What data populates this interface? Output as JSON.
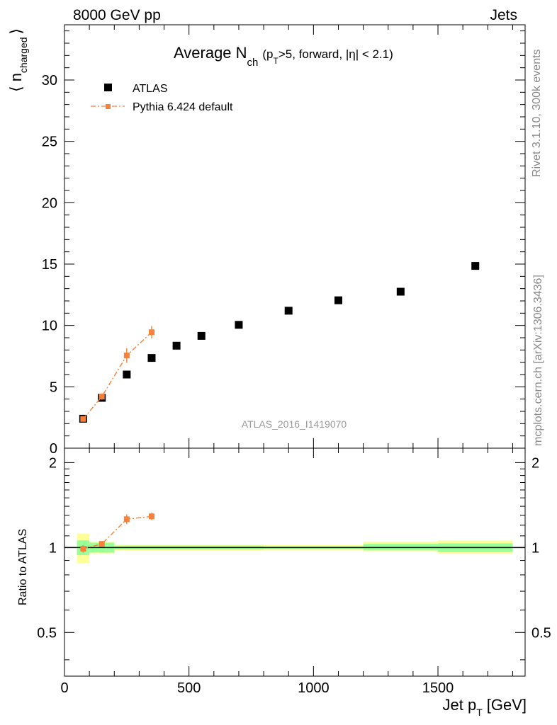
{
  "header": {
    "left": "8000 GeV pp",
    "right": "Jets",
    "side_top": "Rivet 3.1.10,  300k events",
    "side_bottom": "mcplots.cern.ch [arXiv:1306.3436]",
    "watermark": "ATLAS_2016_I1419070"
  },
  "title": {
    "main": "Average N",
    "sub": "ch",
    "rest": "(p",
    "rest_sub": "T",
    "rest2": ">5, forward, |η| < 2.1)"
  },
  "legend": {
    "data_label": "ATLAS",
    "mc_label": "Pythia 6.424 default"
  },
  "axes": {
    "ylabel_main": "⟨ n",
    "ylabel_main_sub": "charged",
    "ylabel_main_close": "⟩",
    "ylabel_ratio": "Ratio to ATLAS",
    "xlabel": "Jet p",
    "xlabel_sub": "T",
    "xlabel_unit": "[GeV]"
  },
  "colors": {
    "data": "#000000",
    "mc": "#f5813a",
    "band_inner": "#99ff99",
    "band_outer": "#ffff99"
  },
  "chart_data": [
    {
      "type": "scatter",
      "panel": "main",
      "xlim": [
        0,
        1850
      ],
      "ylim": [
        0,
        34.5
      ],
      "x_ticks": [
        0,
        500,
        1000,
        1500
      ],
      "y_ticks": [
        0,
        5,
        10,
        15,
        20,
        25,
        30
      ],
      "series": [
        {
          "name": "ATLAS",
          "marker": "square",
          "x": [
            75,
            150,
            250,
            350,
            450,
            550,
            700,
            900,
            1100,
            1350,
            1650
          ],
          "y": [
            2.4,
            4.1,
            6.0,
            7.35,
            8.35,
            9.15,
            10.05,
            11.2,
            12.05,
            12.75,
            14.85
          ],
          "x_err": [
            25,
            50,
            50,
            50,
            50,
            50,
            100,
            100,
            100,
            150,
            150
          ]
        },
        {
          "name": "Pythia 6.424 default",
          "marker": "square",
          "line": "dash-dot",
          "x": [
            75,
            150,
            250,
            350
          ],
          "y": [
            2.38,
            4.2,
            7.55,
            9.45
          ],
          "y_err": [
            0.15,
            0.25,
            0.6,
            0.5
          ]
        }
      ]
    },
    {
      "type": "scatter",
      "panel": "ratio",
      "ylabel": "Ratio to ATLAS",
      "xlim": [
        0,
        1850
      ],
      "ylim": [
        0.35,
        2.25
      ],
      "y_ticks": [
        0.5,
        1,
        2
      ],
      "reference_line": 1.0,
      "band_bins": [
        {
          "x0": 50,
          "x1": 100,
          "inner": [
            0.94,
            1.06
          ],
          "outer": [
            0.88,
            1.12
          ]
        },
        {
          "x0": 100,
          "x1": 200,
          "inner": [
            0.96,
            1.04
          ],
          "outer": [
            0.95,
            1.05
          ]
        },
        {
          "x0": 200,
          "x1": 800,
          "inner": [
            0.985,
            1.015
          ],
          "outer": [
            0.975,
            1.025
          ]
        },
        {
          "x0": 800,
          "x1": 1200,
          "inner": [
            0.99,
            1.01
          ],
          "outer": [
            0.98,
            1.02
          ]
        },
        {
          "x0": 1200,
          "x1": 1500,
          "inner": [
            0.98,
            1.03
          ],
          "outer": [
            0.97,
            1.05
          ]
        },
        {
          "x0": 1500,
          "x1": 1800,
          "inner": [
            0.965,
            1.035
          ],
          "outer": [
            0.95,
            1.06
          ]
        }
      ],
      "series": [
        {
          "name": "Pythia 6.424 default",
          "x": [
            75,
            150,
            250,
            350
          ],
          "y": [
            0.99,
            1.03,
            1.26,
            1.29
          ],
          "y_err": [
            0.03,
            0.02,
            0.05,
            0.04
          ]
        }
      ]
    }
  ]
}
